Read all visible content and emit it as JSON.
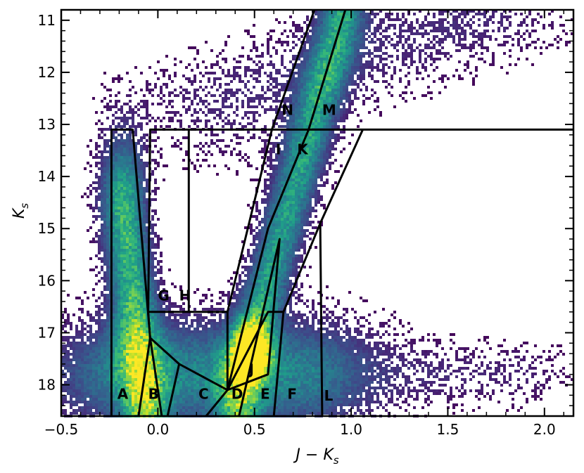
{
  "chart_data": {
    "type": "heatmap",
    "title": "",
    "xlabel": "J − K",
    "xlabel_sub": "s",
    "ylabel": "K",
    "ylabel_sub": "s",
    "xlim": [
      -0.5,
      2.15
    ],
    "ylim": [
      10.8,
      18.6
    ],
    "y_inverted": true,
    "grid": false,
    "colormap": "viridis",
    "x_ticks": [
      {
        "value": -0.5,
        "label": "−0.5"
      },
      {
        "value": 0.0,
        "label": "0.0"
      },
      {
        "value": 0.5,
        "label": "0.5"
      },
      {
        "value": 1.0,
        "label": "1.0"
      },
      {
        "value": 1.5,
        "label": "1.5"
      },
      {
        "value": 2.0,
        "label": "2.0"
      }
    ],
    "y_ticks": [
      {
        "value": 11,
        "label": "11"
      },
      {
        "value": 12,
        "label": "12"
      },
      {
        "value": 13,
        "label": "13"
      },
      {
        "value": 14,
        "label": "14"
      },
      {
        "value": 15,
        "label": "15"
      },
      {
        "value": 16,
        "label": "16"
      },
      {
        "value": 17,
        "label": "17"
      },
      {
        "value": 18,
        "label": "18"
      }
    ],
    "density_components": [
      {
        "name": "blue-sequence",
        "x0": -0.18,
        "x1": -0.06,
        "y0": 14.6,
        "y1": 18.6,
        "sx": 0.08,
        "sy": 0.9,
        "amp": 0.65
      },
      {
        "name": "red-giant-branch",
        "x0": 0.42,
        "x1": 0.95,
        "y0": 18.0,
        "y1": 11.0,
        "sx": 0.08,
        "sy": 1.6,
        "amp": 0.55
      },
      {
        "name": "red-clump",
        "x0": 0.48,
        "x1": 0.48,
        "y0": 17.4,
        "y1": 17.4,
        "sx": 0.06,
        "sy": 0.35,
        "amp": 1.0
      },
      {
        "name": "main-sequence-sheet",
        "x0": -0.1,
        "x1": 0.7,
        "y0": 17.8,
        "y1": 17.8,
        "sx": 0.3,
        "sy": 0.7,
        "amp": 0.45
      },
      {
        "name": "upper-diffuse",
        "x0": 0.4,
        "x1": 1.6,
        "y0": 12.5,
        "y1": 11.0,
        "sx": 0.35,
        "sy": 0.8,
        "amp": 0.12
      },
      {
        "name": "red-tail",
        "x0": 1.5,
        "x1": 1.8,
        "y0": 17.8,
        "y1": 17.8,
        "sx": 0.25,
        "sy": 0.4,
        "amp": 0.1
      }
    ],
    "boundaries": [
      [
        [
          -0.24,
          18.6
        ],
        [
          -0.24,
          13.1
        ],
        [
          -0.18,
          13.1
        ],
        [
          -0.13,
          13.1
        ],
        [
          -0.04,
          17.1
        ],
        [
          -0.1,
          18.6
        ]
      ],
      [
        [
          -0.04,
          17.1
        ],
        [
          0.02,
          18.6
        ]
      ],
      [
        [
          -0.04,
          17.1
        ],
        [
          0.11,
          17.6
        ],
        [
          0.36,
          18.1
        ]
      ],
      [
        [
          0.11,
          17.6
        ],
        [
          0.05,
          18.6
        ]
      ],
      [
        [
          -0.04,
          17.1
        ],
        [
          -0.05,
          16.6
        ],
        [
          0.36,
          16.6
        ]
      ],
      [
        [
          -0.05,
          16.6
        ],
        [
          -0.04,
          13.1
        ],
        [
          2.15,
          13.1
        ]
      ],
      [
        [
          0.16,
          13.1
        ],
        [
          0.16,
          16.6
        ]
      ],
      [
        [
          0.36,
          16.6
        ],
        [
          0.36,
          18.1
        ],
        [
          0.25,
          18.6
        ]
      ],
      [
        [
          0.36,
          16.6
        ],
        [
          0.59,
          13.1
        ],
        [
          0.81,
          10.8
        ]
      ],
      [
        [
          0.36,
          18.1
        ],
        [
          0.57,
          15.0
        ],
        [
          0.78,
          13.1
        ],
        [
          0.97,
          10.8
        ]
      ],
      [
        [
          0.36,
          18.1
        ],
        [
          0.57,
          16.6
        ],
        [
          0.65,
          16.6
        ],
        [
          0.84,
          14.9
        ],
        [
          1.06,
          13.1
        ]
      ],
      [
        [
          0.36,
          18.1
        ],
        [
          0.57,
          17.8
        ],
        [
          0.63,
          15.2
        ],
        [
          0.42,
          18.6
        ]
      ],
      [
        [
          0.65,
          16.6
        ],
        [
          0.6,
          18.6
        ]
      ],
      [
        [
          0.84,
          14.9
        ],
        [
          0.85,
          18.6
        ]
      ]
    ],
    "region_labels": [
      {
        "label": "A",
        "x": -0.21,
        "y": 18.27
      },
      {
        "label": "B",
        "x": -0.05,
        "y": 18.27
      },
      {
        "label": "C",
        "x": 0.21,
        "y": 18.27
      },
      {
        "label": "D",
        "x": 0.38,
        "y": 18.27
      },
      {
        "label": "E",
        "x": 0.53,
        "y": 18.27
      },
      {
        "label": "F",
        "x": 0.67,
        "y": 18.27
      },
      {
        "label": "L",
        "x": 0.86,
        "y": 18.3
      },
      {
        "label": "G",
        "x": 0.0,
        "y": 16.38
      },
      {
        "label": "H",
        "x": 0.11,
        "y": 16.38
      },
      {
        "label": "I",
        "x": 0.61,
        "y": 13.57
      },
      {
        "label": "K",
        "x": 0.72,
        "y": 13.57
      },
      {
        "label": "J",
        "x": 0.47,
        "y": 17.8
      },
      {
        "label": "N",
        "x": 0.64,
        "y": 12.82
      },
      {
        "label": "M",
        "x": 0.85,
        "y": 12.82
      }
    ]
  }
}
